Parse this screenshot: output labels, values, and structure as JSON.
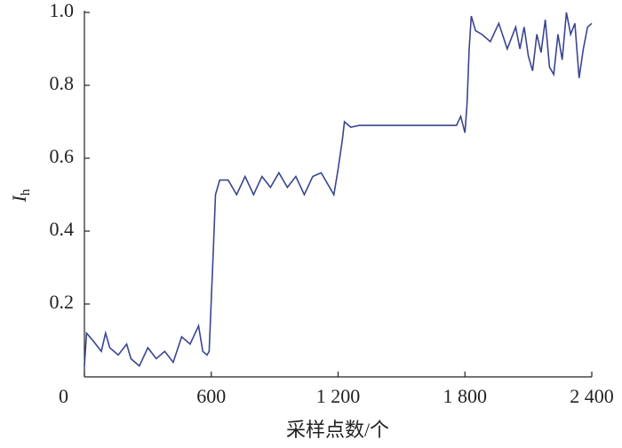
{
  "chart_data": {
    "type": "line",
    "ylabel": "I",
    "ylabel_subscript": "h",
    "xlabel": "采样点数/个",
    "xlim": [
      0,
      2400
    ],
    "ylim": [
      0,
      1
    ],
    "xticks": [
      0,
      600,
      {
        "value": 1200,
        "label": "1 200"
      },
      {
        "value": 1800,
        "label": "1 800"
      },
      {
        "value": 2400,
        "label": "2 400"
      }
    ],
    "yticks": [
      0.2,
      0.4,
      0.6,
      0.8,
      {
        "value": 1,
        "label": "1.0"
      }
    ],
    "grid": false,
    "x": [
      0,
      10,
      40,
      80,
      100,
      120,
      160,
      200,
      220,
      260,
      300,
      340,
      380,
      420,
      460,
      500,
      540,
      560,
      580,
      590,
      610,
      620,
      640,
      680,
      720,
      760,
      800,
      840,
      880,
      920,
      960,
      1000,
      1040,
      1080,
      1120,
      1160,
      1180,
      1200,
      1220,
      1230,
      1260,
      1300,
      1400,
      1500,
      1600,
      1700,
      1760,
      1780,
      1800,
      1810,
      1820,
      1830,
      1850,
      1880,
      1920,
      1960,
      2000,
      2040,
      2060,
      2080,
      2100,
      2120,
      2140,
      2160,
      2180,
      2200,
      2220,
      2240,
      2260,
      2280,
      2300,
      2320,
      2340,
      2360,
      2380,
      2400
    ],
    "series": [
      {
        "color": "#3b4590",
        "values": [
          0.03,
          0.12,
          0.1,
          0.07,
          0.12,
          0.08,
          0.06,
          0.09,
          0.05,
          0.03,
          0.08,
          0.05,
          0.07,
          0.04,
          0.11,
          0.09,
          0.14,
          0.07,
          0.06,
          0.07,
          0.35,
          0.5,
          0.54,
          0.54,
          0.5,
          0.55,
          0.5,
          0.55,
          0.52,
          0.56,
          0.52,
          0.55,
          0.5,
          0.55,
          0.56,
          0.52,
          0.5,
          0.57,
          0.65,
          0.7,
          0.685,
          0.69,
          0.69,
          0.69,
          0.69,
          0.69,
          0.69,
          0.715,
          0.67,
          0.75,
          0.9,
          0.99,
          0.95,
          0.94,
          0.92,
          0.97,
          0.9,
          0.96,
          0.9,
          0.96,
          0.88,
          0.84,
          0.94,
          0.89,
          0.98,
          0.85,
          0.83,
          0.94,
          0.87,
          1.0,
          0.94,
          0.97,
          0.82,
          0.9,
          0.96,
          0.97
        ]
      }
    ]
  }
}
